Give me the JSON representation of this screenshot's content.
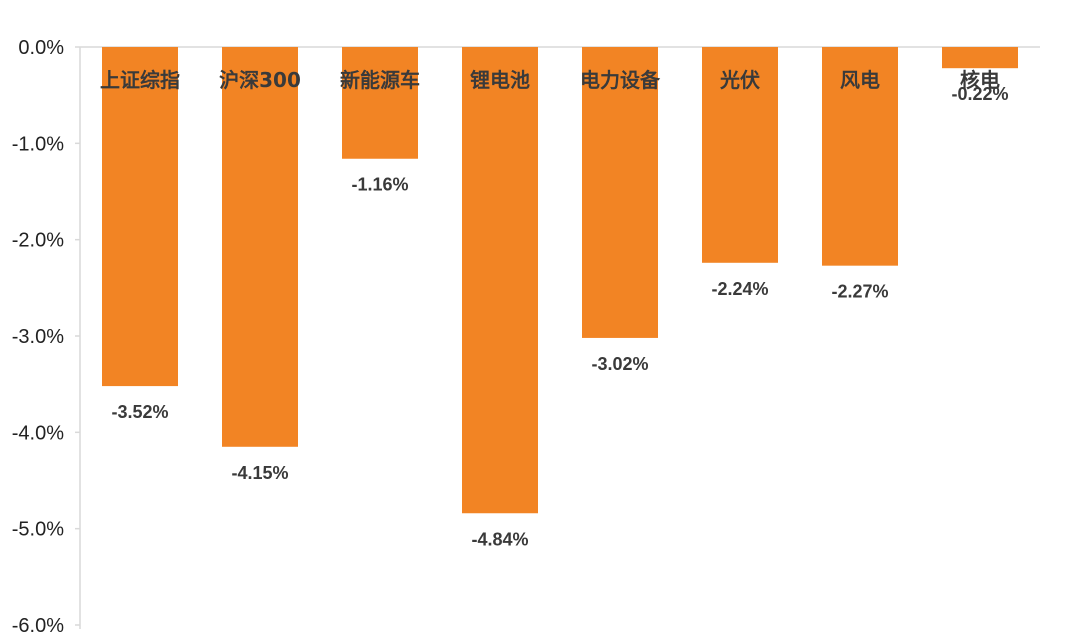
{
  "chart_data": {
    "type": "bar",
    "categories": [
      "上证综指",
      "沪深300",
      "新能源车",
      "锂电池",
      "电力设备",
      "光伏",
      "风电",
      "核电"
    ],
    "values": [
      -3.52,
      -4.15,
      -1.16,
      -4.84,
      -3.02,
      -2.24,
      -2.27,
      -0.22
    ],
    "data_labels": [
      "-3.52%",
      "-4.15%",
      "-1.16%",
      "-4.84%",
      "-3.02%",
      "-2.24%",
      "-2.27%",
      "-0.22%"
    ],
    "y_ticks": [
      {
        "value": 0,
        "label": "0.0%"
      },
      {
        "value": -1,
        "label": "-1.0%"
      },
      {
        "value": -2,
        "label": "-2.0%"
      },
      {
        "value": -3,
        "label": "-3.0%"
      },
      {
        "value": -4,
        "label": "-4.0%"
      },
      {
        "value": -5,
        "label": "-5.0%"
      },
      {
        "value": -6,
        "label": "-6.0%"
      }
    ],
    "ylim": [
      -6,
      0
    ],
    "grid": false,
    "legend": "none",
    "title": "",
    "xlabel": "",
    "ylabel": "",
    "colors": {
      "bar": "#F28424",
      "axis": "#d9d9d9",
      "text": "#3a3a3a"
    }
  }
}
